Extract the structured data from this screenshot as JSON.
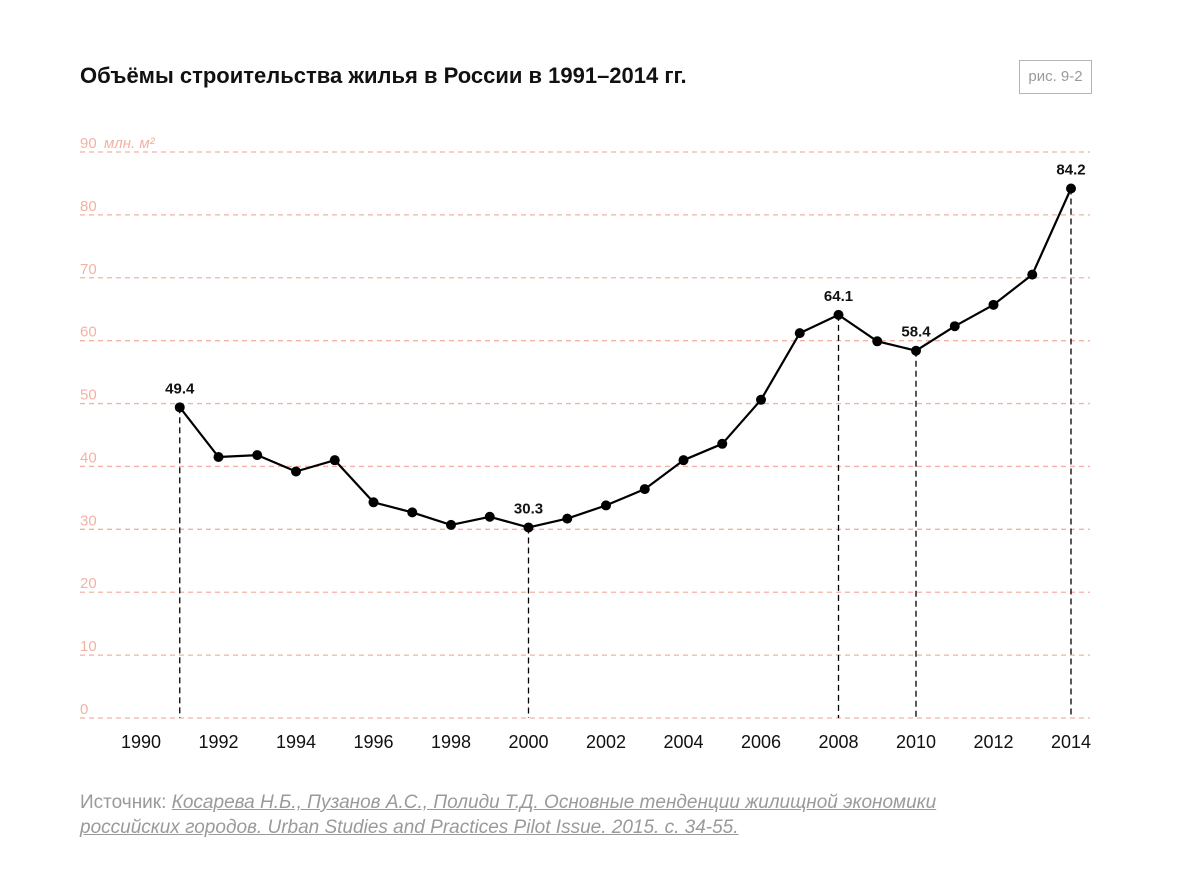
{
  "title": "Объёмы строительства жилья в России в 1991–2014 гг.",
  "figure_label": "рис. 9-2",
  "source": {
    "label": "Источник:",
    "reference": "Косарева Н.Б., Пузанов А.С., Полиди Т.Д. Основные тенденции жилищной экономики российских городов. Urban Studies and Practices Pilot Issue. 2015. с. 34-55."
  },
  "colors": {
    "line": "#000000",
    "grid": "#f4b2a4",
    "y_tick": "#f4b2a4",
    "text": "#111111",
    "muted": "#9a9a9a"
  },
  "chart_data": {
    "type": "line",
    "title": "Объёмы строительства жилья в России в 1991–2014 гг.",
    "ylabel": "млн. м²",
    "xlim": [
      1990,
      2014
    ],
    "ylim": [
      0,
      90
    ],
    "x_ticks": [
      1990,
      1992,
      1994,
      1996,
      1998,
      2000,
      2002,
      2004,
      2006,
      2008,
      2010,
      2012,
      2014
    ],
    "y_ticks": [
      0,
      10,
      20,
      30,
      40,
      50,
      60,
      70,
      80,
      90
    ],
    "grid": "horizontal dashed",
    "series": [
      {
        "x": [
          1991,
          1992,
          1993,
          1994,
          1995,
          1996,
          1997,
          1998,
          1999,
          2000,
          2001,
          2002,
          2003,
          2004,
          2005,
          2006,
          2007,
          2008,
          2009,
          2010,
          2011,
          2012,
          2013,
          2014
        ],
        "values": [
          49.4,
          41.5,
          41.8,
          39.2,
          41.0,
          34.3,
          32.7,
          30.7,
          32.0,
          30.3,
          31.7,
          33.8,
          36.4,
          41.0,
          43.6,
          50.6,
          61.2,
          64.1,
          59.9,
          58.4,
          62.3,
          65.7,
          70.5,
          84.2
        ]
      }
    ],
    "annotations": [
      {
        "x": 1991,
        "y": 49.4,
        "text": "49.4"
      },
      {
        "x": 2000,
        "y": 30.3,
        "text": "30.3"
      },
      {
        "x": 2008,
        "y": 64.1,
        "text": "64.1"
      },
      {
        "x": 2010,
        "y": 58.4,
        "text": "58.4"
      },
      {
        "x": 2014,
        "y": 84.2,
        "text": "84.2"
      }
    ]
  }
}
